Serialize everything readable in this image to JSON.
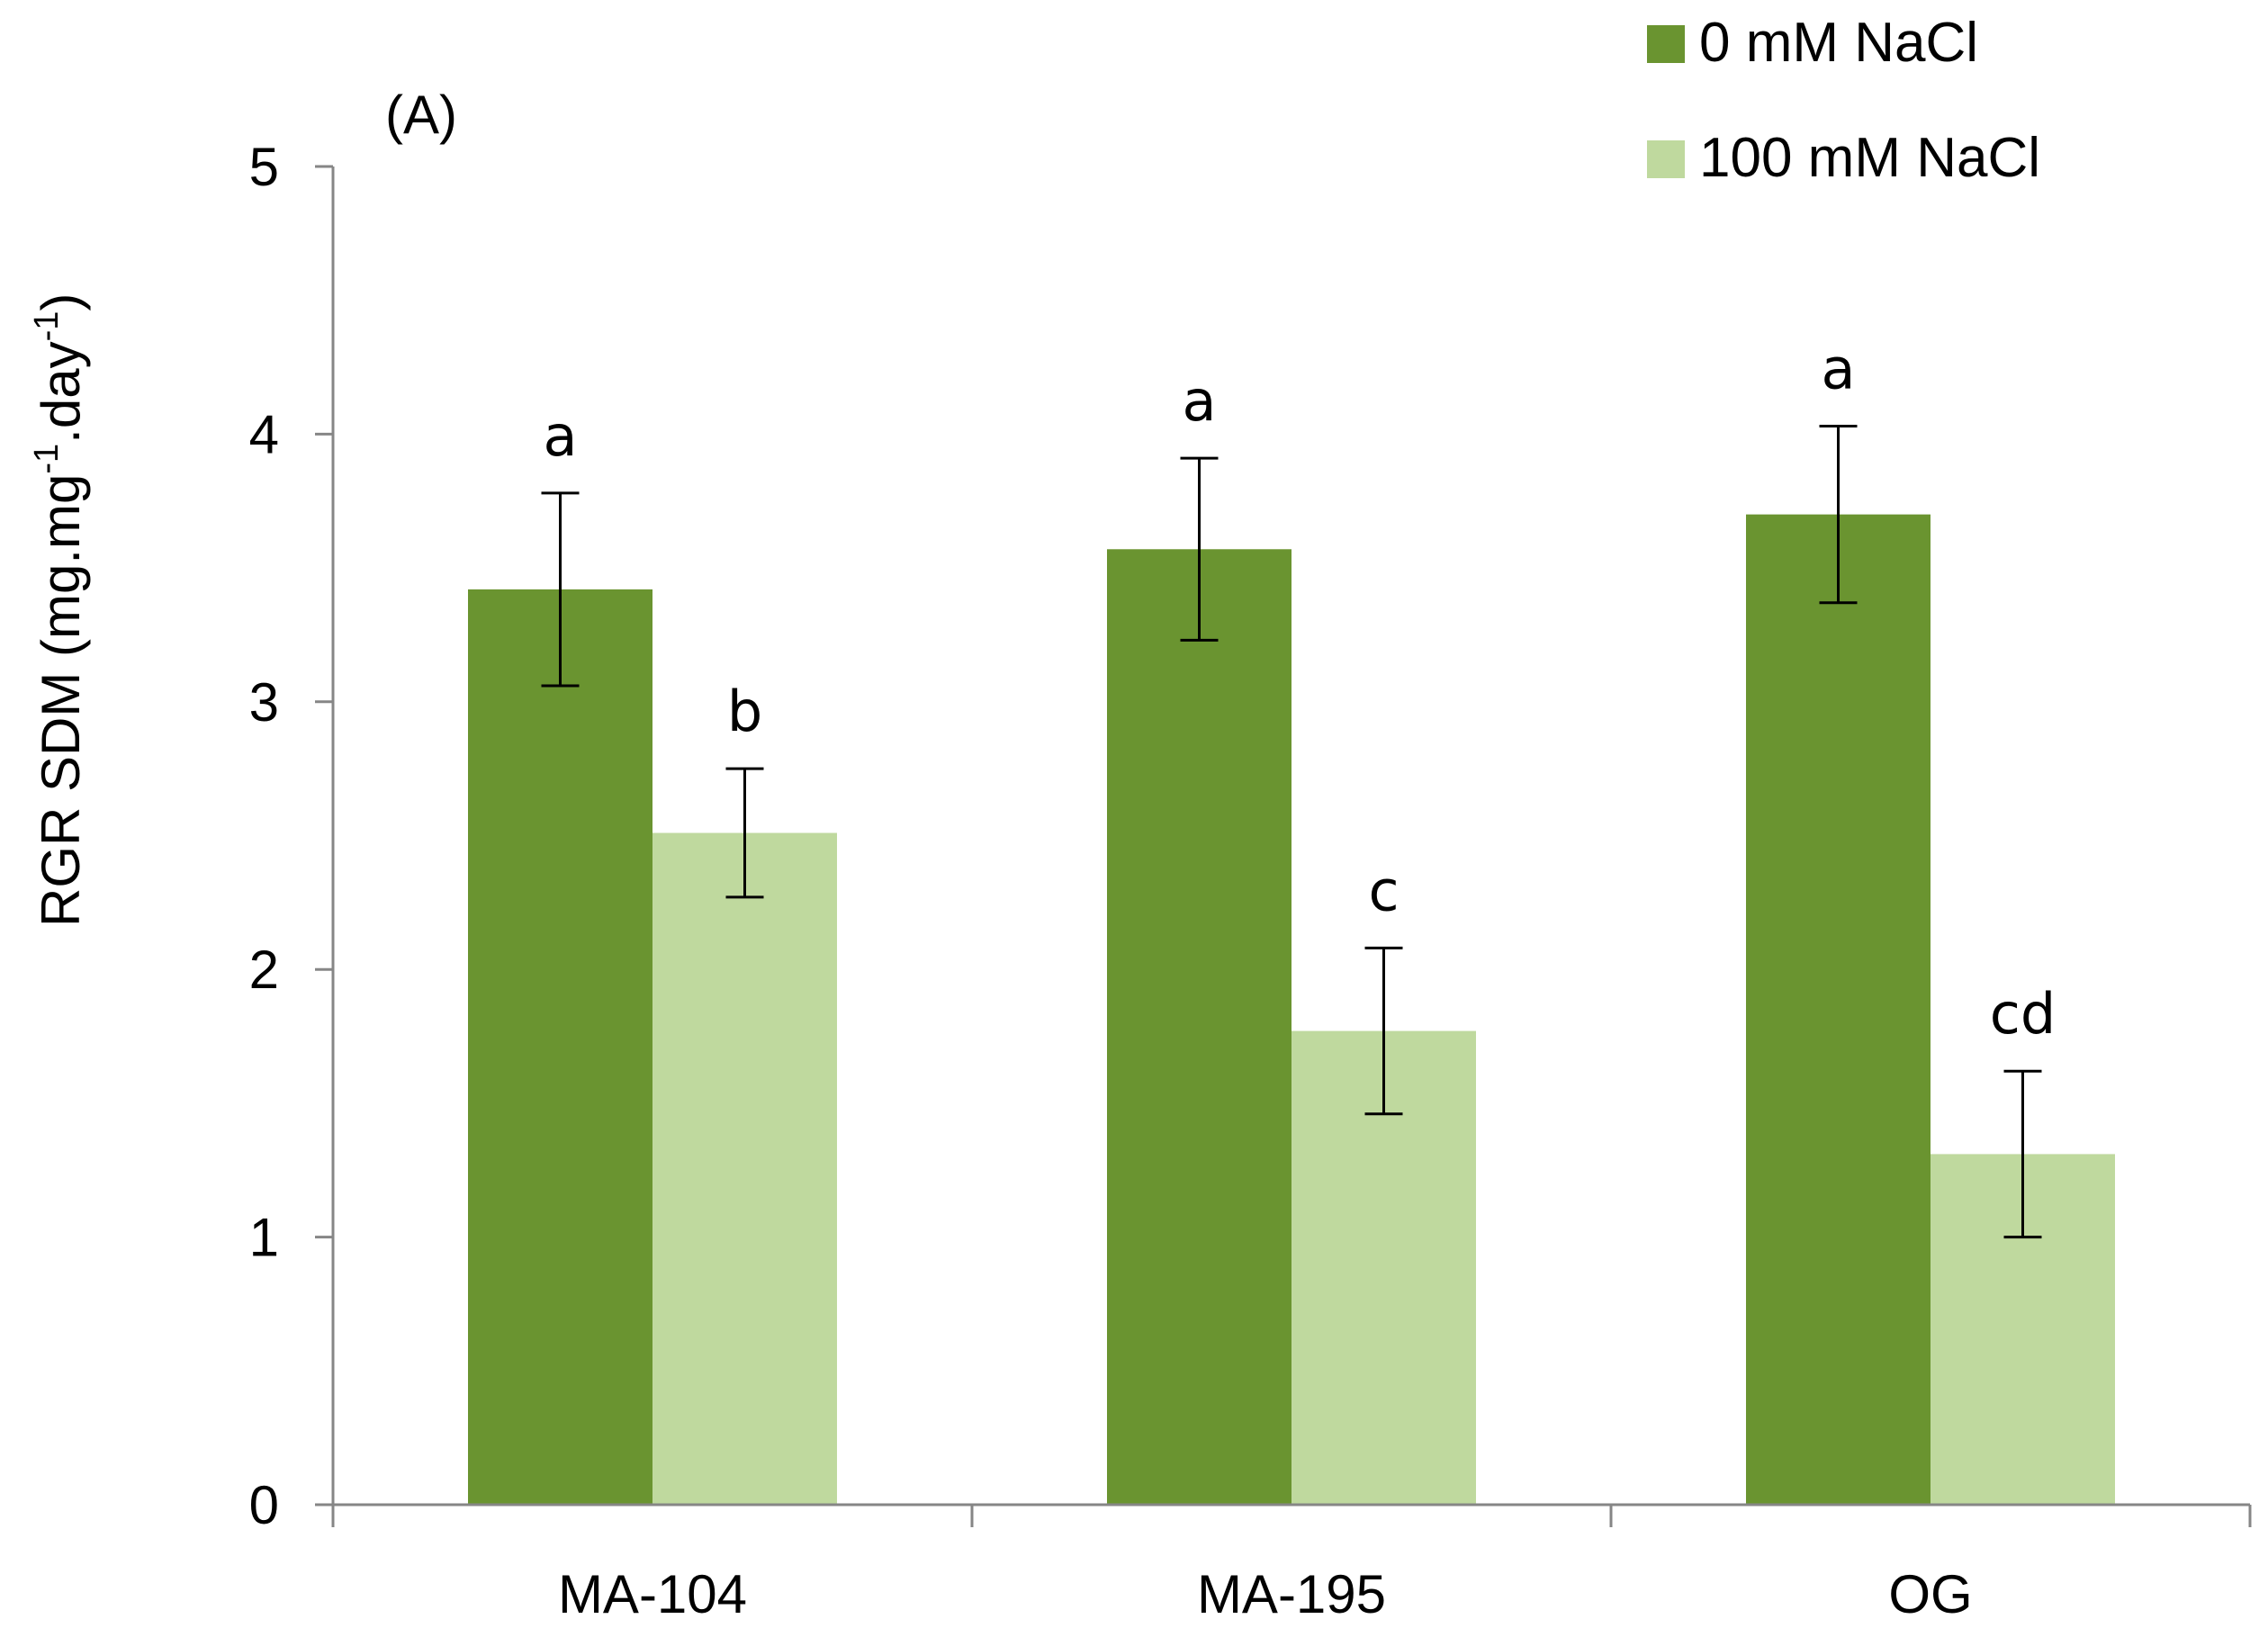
{
  "chart_data": {
    "type": "bar",
    "panel_label": "(A)",
    "categories": [
      "MA-104",
      "MA-195",
      "OG"
    ],
    "series": [
      {
        "name": "0 mM NaCl",
        "color": "#6a9430",
        "values": [
          3.42,
          3.57,
          3.7
        ],
        "errors": [
          0.36,
          0.34,
          0.33
        ],
        "letters": [
          "a",
          "a",
          "a"
        ]
      },
      {
        "name": "100 mM NaCl",
        "color": "#bfd99e",
        "values": [
          2.51,
          1.77,
          1.31
        ],
        "errors": [
          0.24,
          0.31,
          0.31
        ],
        "letters": [
          "b",
          "c",
          "cd"
        ]
      }
    ],
    "ylabel": {
      "main": "RGR  SDM (mg.mg",
      "sup1": "-1",
      "mid": ".day",
      "sup2": "-1",
      "end": ")"
    },
    "ylim": [
      0,
      5
    ],
    "yticks": [
      "0",
      "1",
      "2",
      "3",
      "4",
      "5"
    ],
    "grid": false,
    "legend_position": "top-right"
  }
}
